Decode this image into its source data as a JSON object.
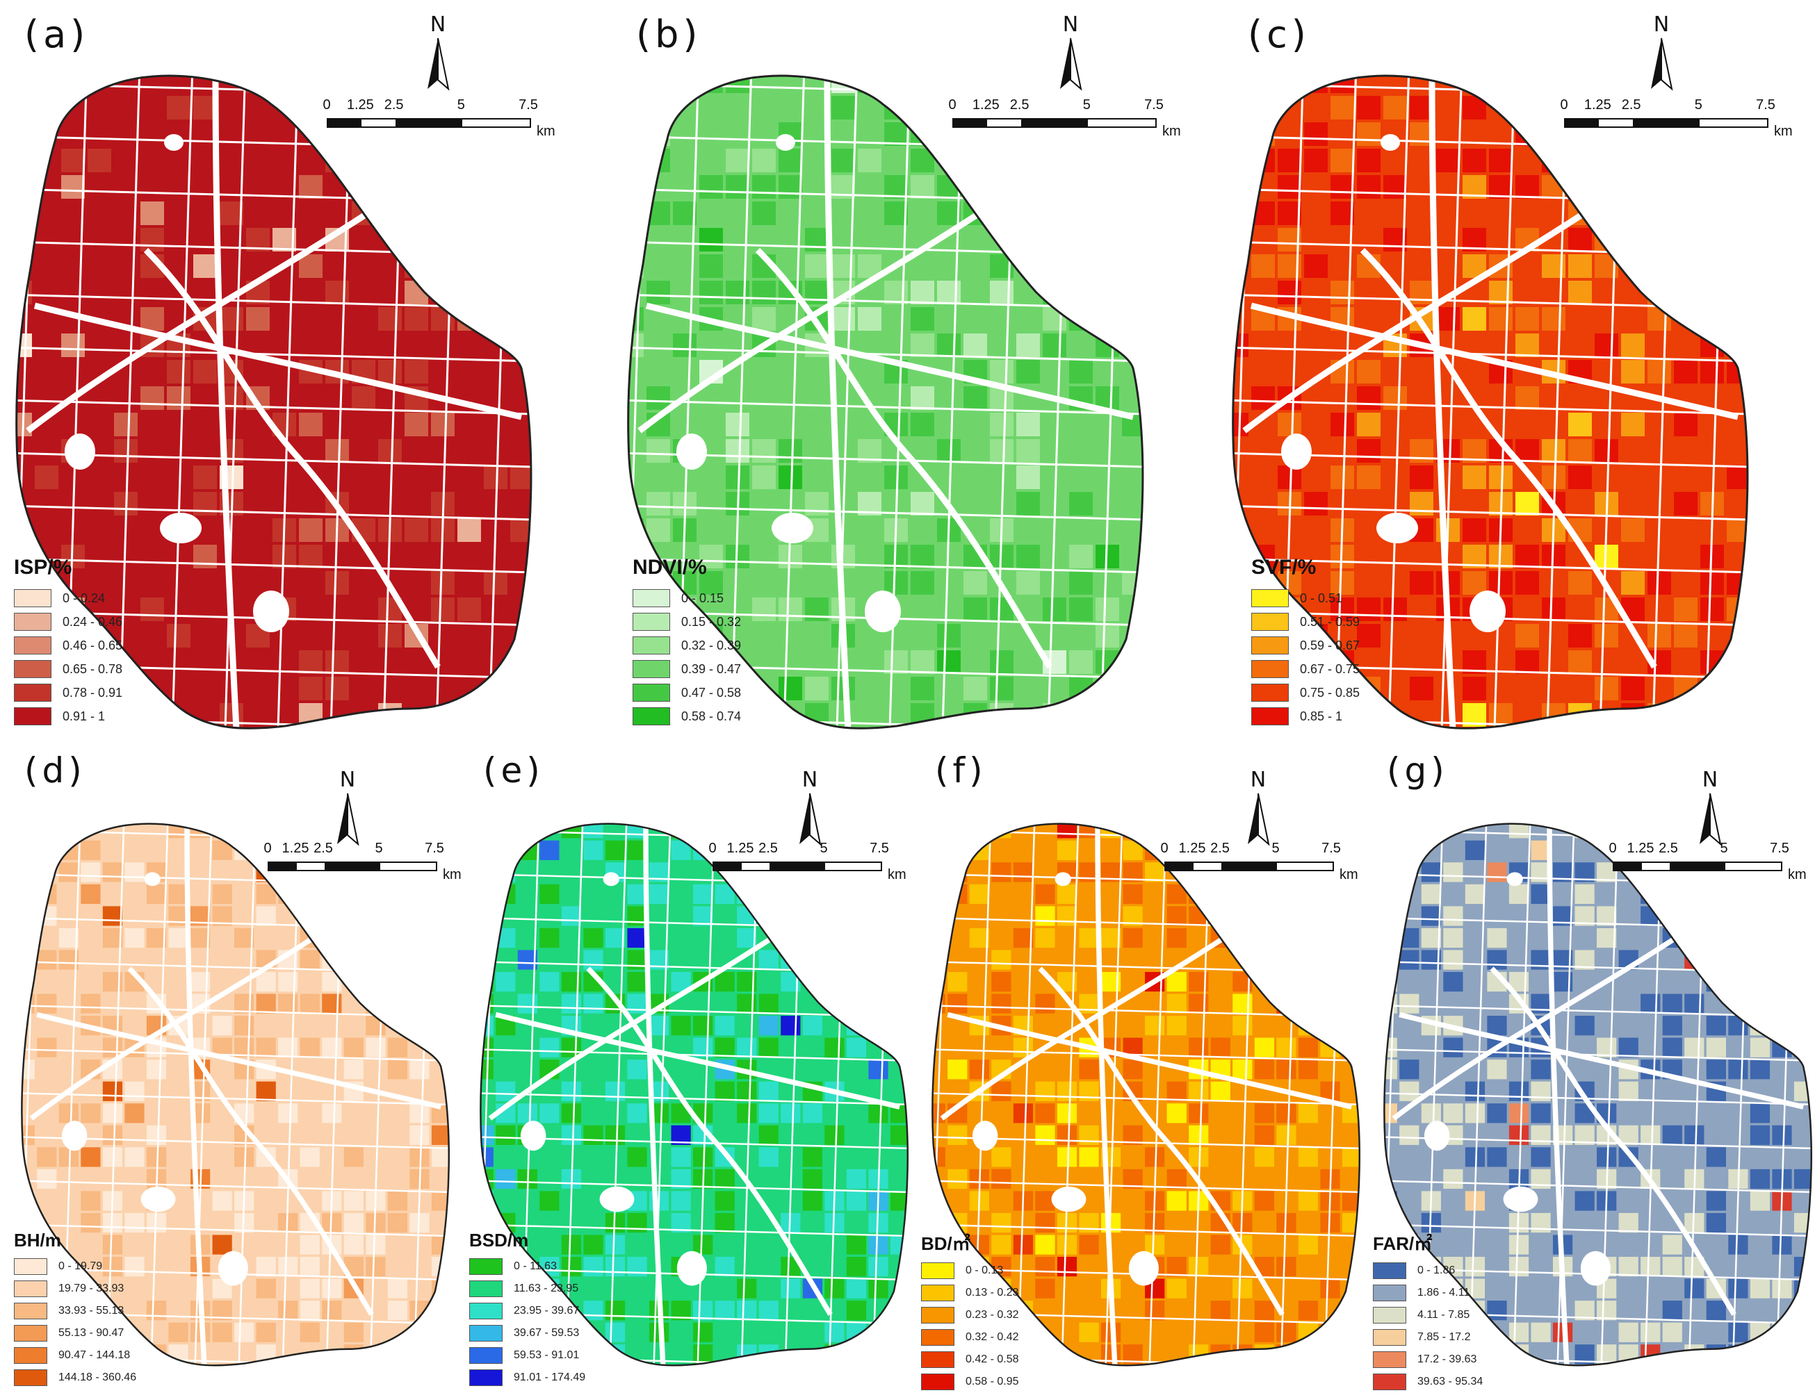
{
  "panels": [
    {
      "label": "(a)",
      "legend_title": "ISP/%",
      "classes": [
        "0 - 0.24",
        "0.24 - 0.46",
        "0.46 - 0.65",
        "0.65 - 0.78",
        "0.78 - 0.91",
        "0.91 - 1"
      ],
      "colors": [
        "#fbe3cf",
        "#eab098",
        "#dd8a70",
        "#cf5e48",
        "#c2342a",
        "#b8141b"
      ],
      "road": "#ffffff",
      "dominant": 5
    },
    {
      "label": "(b)",
      "legend_title": "NDVI/%",
      "classes": [
        "0 - 0.15",
        "0.15 - 0.32",
        "0.32 - 0.39",
        "0.39 - 0.47",
        "0.47 - 0.58",
        "0.58 - 0.74"
      ],
      "colors": [
        "#d7f5d4",
        "#b7ecb1",
        "#96e28e",
        "#6fd56b",
        "#44c844",
        "#22bd22"
      ],
      "road": "#ffffff",
      "dominant": 3
    },
    {
      "label": "(c)",
      "legend_title": "SVF/%",
      "classes": [
        "0 - 0.51",
        "0.51 - 0.59",
        "0.59 - 0.67",
        "0.67 - 0.75",
        "0.75 - 0.85",
        "0.85 - 1"
      ],
      "colors": [
        "#fff21a",
        "#fbc417",
        "#f79a12",
        "#f26b0c",
        "#ec3e07",
        "#e51104"
      ],
      "road": "#ffffff",
      "dominant": 4
    },
    {
      "label": "(d)",
      "legend_title": "BH/m",
      "classes": [
        "0 - 19.79",
        "19.79 - 33.93",
        "33.93 - 55.13",
        "55.13 - 90.47",
        "90.47 - 144.18",
        "144.18 - 360.46"
      ],
      "colors": [
        "#fde9d5",
        "#fbd2ad",
        "#f8b982",
        "#f39a55",
        "#ee7d2d",
        "#e05a0d"
      ],
      "road": "#ffffff",
      "dominant": 1
    },
    {
      "label": "(e)",
      "legend_title": "BSD/m",
      "classes": [
        "0 - 11.63",
        "11.63 - 23.95",
        "23.95 - 39.67",
        "39.67 - 59.53",
        "59.53 - 91.01",
        "91.01 - 174.49"
      ],
      "colors": [
        "#1ec31e",
        "#1fd67c",
        "#2ee0c8",
        "#34b8e8",
        "#2a6ae6",
        "#1616d8"
      ],
      "road": "#ffffff",
      "dominant": 1
    },
    {
      "label": "(f)",
      "legend_title": "BD/㎡",
      "classes": [
        "0 - 0.13",
        "0.13 - 0.23",
        "0.23 - 0.32",
        "0.32 - 0.42",
        "0.42 - 0.58",
        "0.58 - 0.95"
      ],
      "colors": [
        "#fff000",
        "#fbc300",
        "#f79600",
        "#f26a00",
        "#ea3b00",
        "#e01000"
      ],
      "road": "#ffffff",
      "dominant": 2
    },
    {
      "label": "(g)",
      "legend_title": "FAR/㎡",
      "classes": [
        "0 - 1.86",
        "1.86 - 4.11",
        "4.11 - 7.85",
        "7.85 - 17.2",
        "17.2 - 39.63",
        "39.63 - 95.34"
      ],
      "colors": [
        "#3e67ad",
        "#8fa4bf",
        "#dde0c8",
        "#f6cf9c",
        "#ec8a5e",
        "#d93a2c"
      ],
      "road": "#ffffff",
      "dominant": 1
    }
  ],
  "north_label": "N",
  "scale": {
    "ticks": [
      "0",
      "1.25",
      "2.5",
      "5",
      "7.5"
    ],
    "unit": "km"
  }
}
